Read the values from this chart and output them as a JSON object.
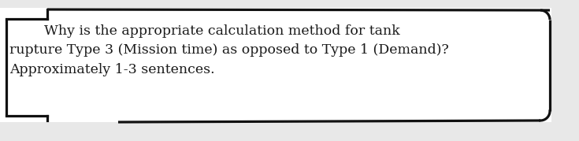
{
  "background_color": "#e8e8e8",
  "box_color": "#ffffff",
  "box_edge_color": "#111111",
  "text_line1": "        Why is the appropriate calculation method for tank",
  "text_line2": "rupture Type 3 (Mission time) as opposed to Type 1 (Demand)?",
  "text_line3": "Approximately 1-3 sentences.",
  "font_size": 12.5,
  "font_family": "DejaVu Serif",
  "text_color": "#1a1a1a",
  "fig_width": 7.35,
  "fig_height": 1.79
}
